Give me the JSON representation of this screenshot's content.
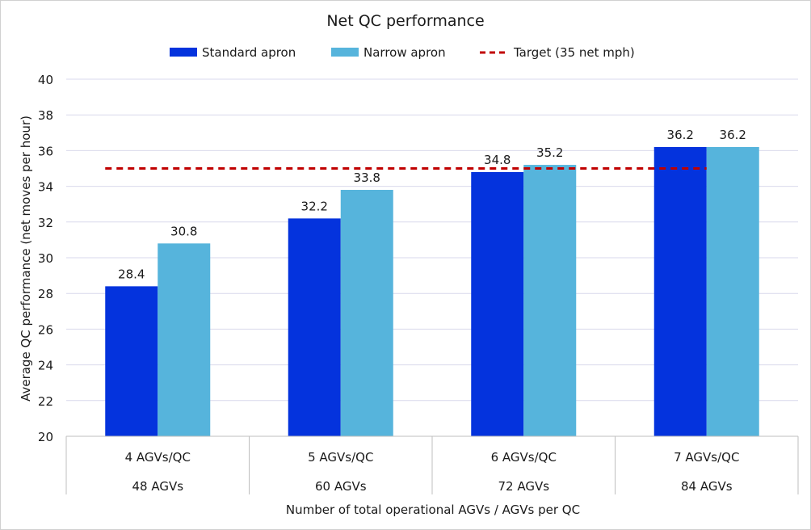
{
  "chart_data": {
    "type": "bar",
    "title": "Net QC performance",
    "xlabel": "Number of total operational AGVs / AGVs per QC",
    "ylabel": "Average QC performance (net moves per hour)",
    "categories": [
      "4 AGVs/QC",
      "5 AGVs/QC",
      "6 AGVs/QC",
      "7 AGVs/QC"
    ],
    "subcategories": [
      "48 AGVs",
      "60 AGVs",
      "72 AGVs",
      "84 AGVs"
    ],
    "series": [
      {
        "name": "Standard apron",
        "values": [
          28.4,
          32.2,
          34.8,
          36.2
        ],
        "color": "#0433dd"
      },
      {
        "name": "Narrow apron",
        "values": [
          30.8,
          33.8,
          35.2,
          36.2
        ],
        "color": "#56b4dc"
      }
    ],
    "reference_line": {
      "name": "Target (35 net mph)",
      "value": 35,
      "color": "#c00000",
      "style": "dashed"
    },
    "ylim": [
      20,
      40
    ],
    "yticks": [
      20,
      22,
      24,
      26,
      28,
      30,
      32,
      34,
      36,
      38,
      40
    ],
    "grid": true,
    "legend_position": "top"
  }
}
